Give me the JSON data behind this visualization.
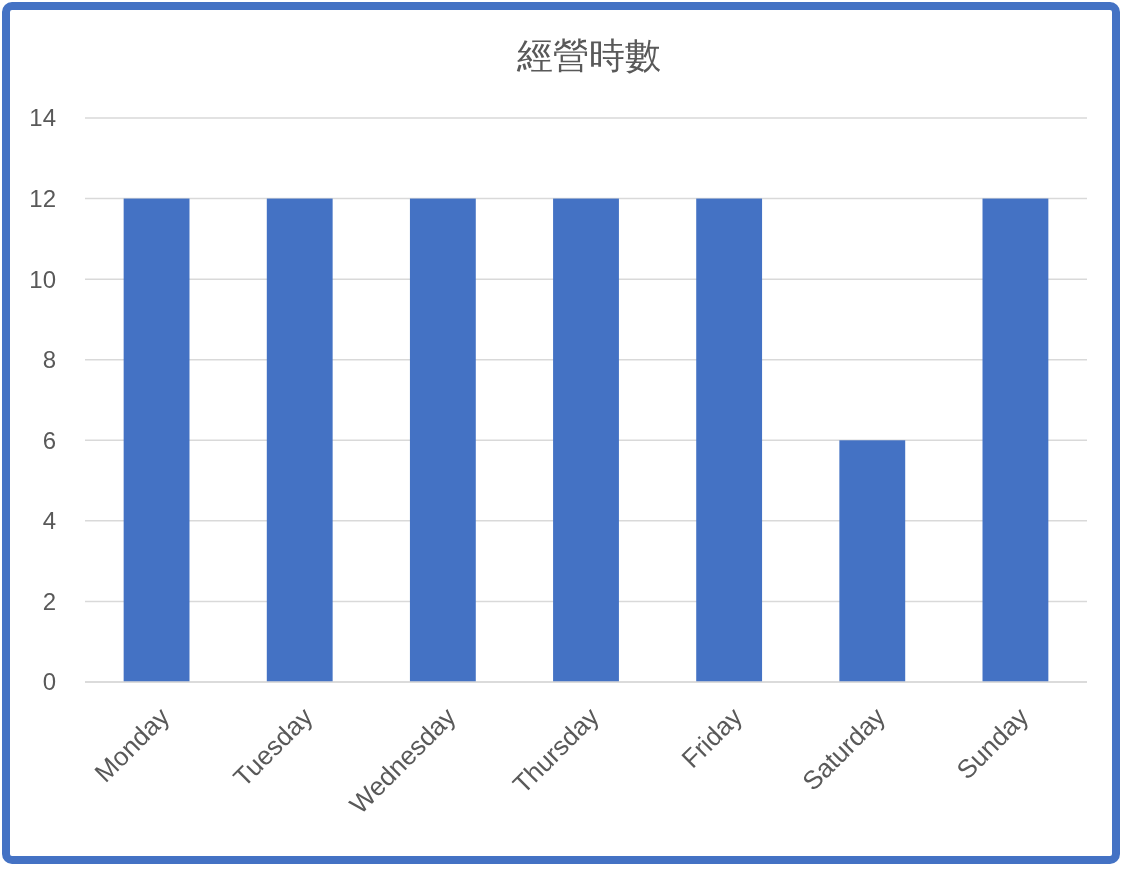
{
  "chart_data": {
    "type": "bar",
    "title": "經營時數",
    "categories": [
      "Monday",
      "Tuesday",
      "Wednesday",
      "Thursday",
      "Friday",
      "Saturday",
      "Sunday"
    ],
    "values": [
      12,
      12,
      12,
      12,
      12,
      6,
      12
    ],
    "color": "#4472c4",
    "ylim": [
      0,
      14
    ],
    "yticks": [
      0,
      2,
      4,
      6,
      8,
      10,
      12,
      14
    ],
    "grid": "y"
  }
}
